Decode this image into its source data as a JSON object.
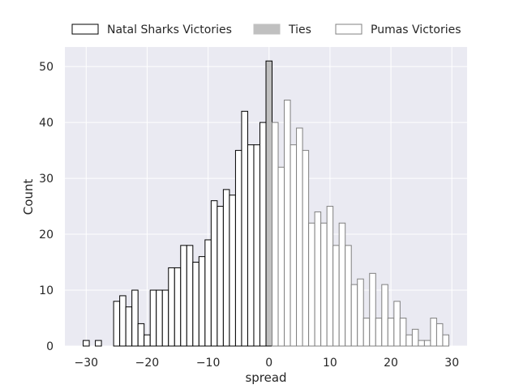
{
  "chart_data": {
    "type": "bar",
    "xlabel": "spread",
    "ylabel": "Count",
    "xlim": [
      -33.5,
      32.5
    ],
    "ylim": [
      0,
      53.5
    ],
    "xticks": [
      -30,
      -20,
      -10,
      0,
      10,
      20,
      30
    ],
    "xtick_labels": [
      "−30",
      "−20",
      "−10",
      "0",
      "10",
      "20",
      "30"
    ],
    "yticks": [
      0,
      10,
      20,
      30,
      40,
      50
    ],
    "ytick_labels": [
      "0",
      "10",
      "20",
      "30",
      "40",
      "50"
    ],
    "grid": true,
    "legend_position": "top",
    "colors": {
      "background": "#eaeaf2",
      "grid": "#ffffff",
      "natal_edge": "#000000",
      "ties_fill": "#c0c0c0",
      "pumas_edge": "#808080",
      "bar_fill": "#ffffff"
    },
    "series": [
      {
        "name": "Natal Sharks Victories",
        "x": [
          -30,
          -29,
          -28,
          -27,
          -26,
          -25,
          -24,
          -23,
          -22,
          -21,
          -20,
          -19,
          -18,
          -17,
          -16,
          -15,
          -14,
          -13,
          -12,
          -11,
          -10,
          -9,
          -8,
          -7,
          -6,
          -5,
          -4,
          -3,
          -2,
          -1
        ],
        "values": [
          1,
          0,
          1,
          0,
          0,
          8,
          9,
          7,
          10,
          4,
          2,
          10,
          10,
          10,
          14,
          14,
          18,
          18,
          15,
          16,
          19,
          26,
          25,
          28,
          27,
          35,
          42,
          36,
          36,
          40
        ]
      },
      {
        "name": "Ties",
        "x": [
          0
        ],
        "values": [
          51
        ]
      },
      {
        "name": "Pumas Victories",
        "x": [
          1,
          2,
          3,
          4,
          5,
          6,
          7,
          8,
          9,
          10,
          11,
          12,
          13,
          14,
          15,
          16,
          17,
          18,
          19,
          20,
          21,
          22,
          23,
          24,
          25,
          26,
          27,
          28,
          29
        ],
        "values": [
          40,
          32,
          44,
          36,
          39,
          35,
          22,
          24,
          22,
          25,
          18,
          22,
          18,
          11,
          12,
          5,
          13,
          5,
          11,
          5,
          8,
          5,
          2,
          3,
          1,
          1,
          5,
          4,
          2
        ]
      }
    ]
  }
}
